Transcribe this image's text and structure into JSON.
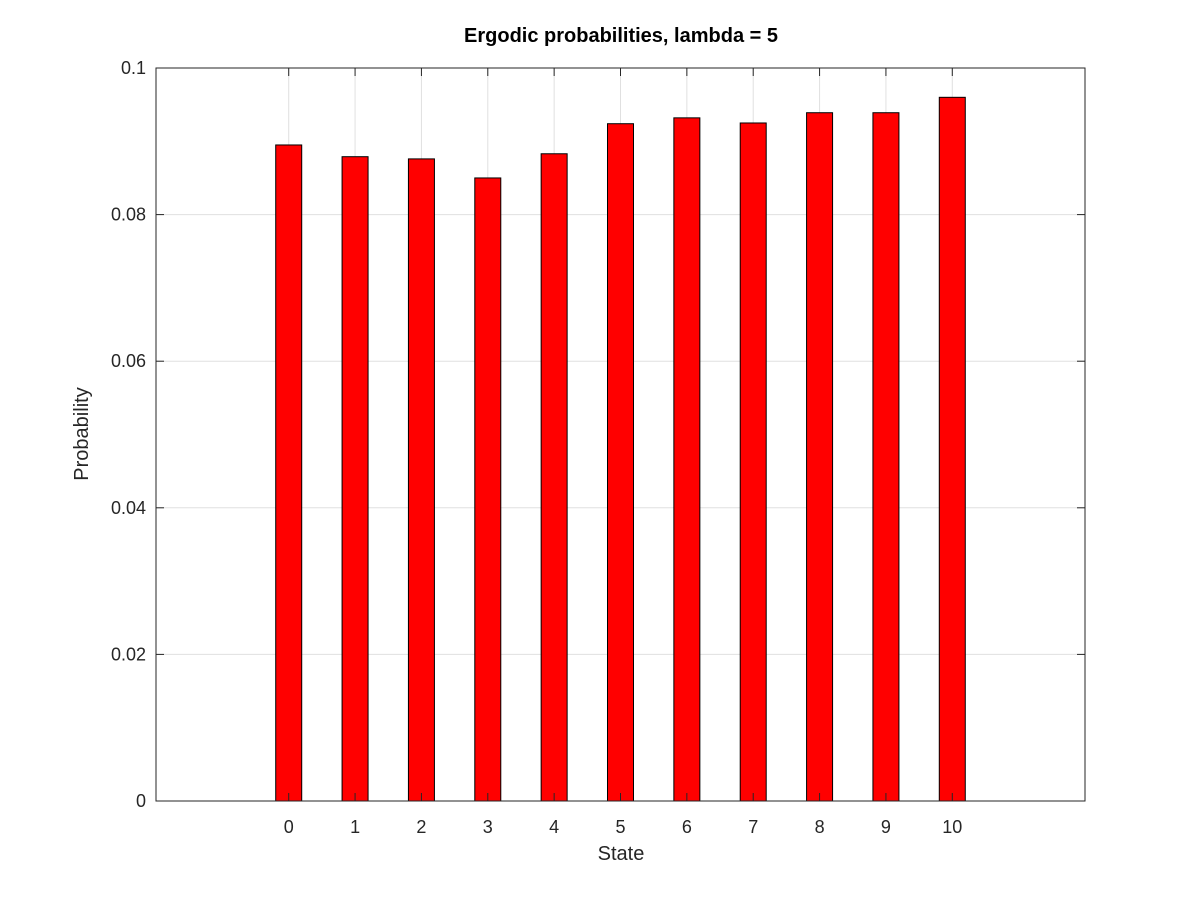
{
  "chart_data": {
    "type": "bar",
    "title": "Ergodic probabilities, lambda = 5",
    "xlabel": "State",
    "ylabel": "Probability",
    "categories": [
      "0",
      "1",
      "2",
      "3",
      "4",
      "5",
      "6",
      "7",
      "8",
      "9",
      "10"
    ],
    "values": [
      0.0895,
      0.0879,
      0.0876,
      0.085,
      0.0883,
      0.0924,
      0.0932,
      0.0925,
      0.0939,
      0.0939,
      0.096
    ],
    "xlim": [
      -2,
      12
    ],
    "ylim": [
      0,
      0.1
    ],
    "yticks": [
      0,
      0.02,
      0.04,
      0.06,
      0.08,
      0.1
    ],
    "ytick_labels": [
      "0",
      "0.02",
      "0.04",
      "0.06",
      "0.08",
      "0.1"
    ],
    "grid": true,
    "bar_color": "#ff0000",
    "bar_edge_color": "#000000"
  }
}
